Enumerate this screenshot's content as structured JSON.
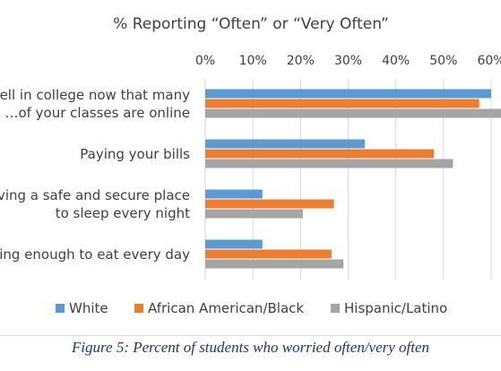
{
  "chart_data": {
    "type": "bar",
    "orientation": "horizontal",
    "title": "% Reporting “Often” or “Very Often”",
    "categories": [
      [
        "…ell in college now that many",
        "…of your classes are online"
      ],
      [
        "Paying your bills"
      ],
      [
        "…ving a safe and secure place",
        "to sleep every night"
      ],
      [
        "…ing enough to eat every day"
      ]
    ],
    "series": [
      {
        "name": "White",
        "color": "#5b9bd5",
        "values": [
          60,
          33.5,
          12,
          12
        ]
      },
      {
        "name": "African American/Black",
        "color": "#ed7d31",
        "values": [
          57.5,
          48,
          27,
          26.5
        ]
      },
      {
        "name": "Hispanic/Latino",
        "color": "#a5a5a5",
        "values": [
          63,
          52,
          20.5,
          29
        ]
      }
    ],
    "x_ticks": [
      "0%",
      "10%",
      "20%",
      "30%",
      "40%",
      "50%",
      "60%"
    ],
    "xlim": [
      0,
      60
    ],
    "grid": true,
    "legend_position": "bottom"
  },
  "caption": "Figure 5: Percent of students who worried often/very often"
}
